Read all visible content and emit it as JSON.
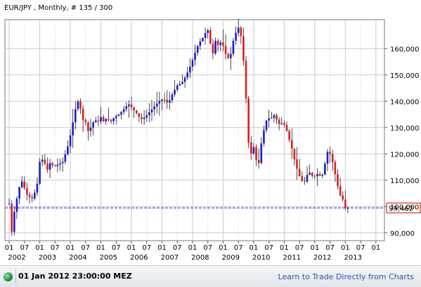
{
  "header": {
    "title": "EUR/JPY  , Monthly, # 135 / 300"
  },
  "footer": {
    "datetime": "01 Jan 2012 23:00:00 MEZ",
    "link_text": "Learn to Trade Directly from Charts"
  },
  "colors": {
    "up": "#1a1ad6",
    "down": "#e31b1b",
    "grid": "#c9c9c9",
    "marker": "#2222dd",
    "marker_box": "#d80000"
  },
  "chart_data": {
    "type": "candlestick",
    "title": "EUR/JPY  , Monthly, # 135 / 300",
    "ylim": [
      87000,
      171000
    ],
    "y_ticks": [
      90000,
      100000,
      110000,
      120000,
      130000,
      140000,
      150000,
      160000
    ],
    "y_tick_labels": [
      "90,000",
      "100,000",
      "110,000",
      "120,000",
      "130,000",
      "140,000",
      "150,000",
      "160,000"
    ],
    "x_tick_labels": [
      "01",
      "07",
      "01",
      "07",
      "01",
      "07",
      "01",
      "07",
      "01",
      "07",
      "01",
      "07",
      "01",
      "07",
      "01",
      "07",
      "01",
      "07",
      "01",
      "07",
      "01",
      "07",
      "01",
      "07",
      "01"
    ],
    "x_year_labels": [
      "2002",
      "2003",
      "2004",
      "2005",
      "2006",
      "2007",
      "2008",
      "2009",
      "2010",
      "2011",
      "2012",
      "2013"
    ],
    "current_value": 99462,
    "current_value_label": "99,462",
    "grid": true,
    "price_points": [
      [
        2001.0,
        101000
      ],
      [
        2001.07,
        89000
      ],
      [
        2001.15,
        97000
      ],
      [
        2001.3,
        106000
      ],
      [
        2001.4,
        110000
      ],
      [
        2001.5,
        107000
      ],
      [
        2001.6,
        104000
      ],
      [
        2001.75,
        103000
      ],
      [
        2001.9,
        107000
      ],
      [
        2002.0,
        117000
      ],
      [
        2002.1,
        118000
      ],
      [
        2002.25,
        114000
      ],
      [
        2002.35,
        117000
      ],
      [
        2002.45,
        115000
      ],
      [
        2002.6,
        116000
      ],
      [
        2002.75,
        117000
      ],
      [
        2002.9,
        122000
      ],
      [
        2003.0,
        127000
      ],
      [
        2003.1,
        133000
      ],
      [
        2003.2,
        139000
      ],
      [
        2003.28,
        140500
      ],
      [
        2003.4,
        133000
      ],
      [
        2003.5,
        132000
      ],
      [
        2003.6,
        128000
      ],
      [
        2003.7,
        131000
      ],
      [
        2003.8,
        133000
      ],
      [
        2003.9,
        132000
      ],
      [
        2004.0,
        134000
      ],
      [
        2004.1,
        132000
      ],
      [
        2004.2,
        134000
      ],
      [
        2004.3,
        132000
      ],
      [
        2004.45,
        134000
      ],
      [
        2004.6,
        135000
      ],
      [
        2004.75,
        137000
      ],
      [
        2004.9,
        139000
      ],
      [
        2005.05,
        137000
      ],
      [
        2005.2,
        135000
      ],
      [
        2005.3,
        133000
      ],
      [
        2005.45,
        134000
      ],
      [
        2005.6,
        136000
      ],
      [
        2005.75,
        138000
      ],
      [
        2005.9,
        140000
      ],
      [
        2006.05,
        141000
      ],
      [
        2006.2,
        139000
      ],
      [
        2006.35,
        143000
      ],
      [
        2006.5,
        146000
      ],
      [
        2006.65,
        147000
      ],
      [
        2006.8,
        150000
      ],
      [
        2006.95,
        154000
      ],
      [
        2007.1,
        159000
      ],
      [
        2007.2,
        162000
      ],
      [
        2007.33,
        164000
      ],
      [
        2007.42,
        166000
      ],
      [
        2007.5,
        167000
      ],
      [
        2007.58,
        162000
      ],
      [
        2007.67,
        158000
      ],
      [
        2007.75,
        163000
      ],
      [
        2007.85,
        161000
      ],
      [
        2007.95,
        163000
      ],
      [
        2008.05,
        159000
      ],
      [
        2008.15,
        156000
      ],
      [
        2008.25,
        158000
      ],
      [
        2008.35,
        164000
      ],
      [
        2008.45,
        167000
      ],
      [
        2008.55,
        169000
      ],
      [
        2008.62,
        160000
      ],
      [
        2008.7,
        152000
      ],
      [
        2008.75,
        141000
      ],
      [
        2008.8,
        129000
      ],
      [
        2008.85,
        122000
      ],
      [
        2008.92,
        120000
      ],
      [
        2008.98,
        124000
      ],
      [
        2009.05,
        119000
      ],
      [
        2009.15,
        115000
      ],
      [
        2009.25,
        124000
      ],
      [
        2009.35,
        130000
      ],
      [
        2009.45,
        134000
      ],
      [
        2009.55,
        133000
      ],
      [
        2009.65,
        135000
      ],
      [
        2009.75,
        133000
      ],
      [
        2009.85,
        131000
      ],
      [
        2009.95,
        132000
      ],
      [
        2010.05,
        130000
      ],
      [
        2010.15,
        126000
      ],
      [
        2010.25,
        122000
      ],
      [
        2010.35,
        117000
      ],
      [
        2010.45,
        113000
      ],
      [
        2010.55,
        110000
      ],
      [
        2010.65,
        109000
      ],
      [
        2010.75,
        112000
      ],
      [
        2010.85,
        113000
      ],
      [
        2010.95,
        111000
      ],
      [
        2011.05,
        112000
      ],
      [
        2011.15,
        113000
      ],
      [
        2011.2,
        109000
      ],
      [
        2011.28,
        114000
      ],
      [
        2011.35,
        117000
      ],
      [
        2011.42,
        121000
      ],
      [
        2011.5,
        120000
      ],
      [
        2011.58,
        117000
      ],
      [
        2011.65,
        113000
      ],
      [
        2011.72,
        110000
      ],
      [
        2011.8,
        104000
      ],
      [
        2011.88,
        104500
      ],
      [
        2011.95,
        101000
      ],
      [
        2012.0,
        99462
      ]
    ]
  }
}
